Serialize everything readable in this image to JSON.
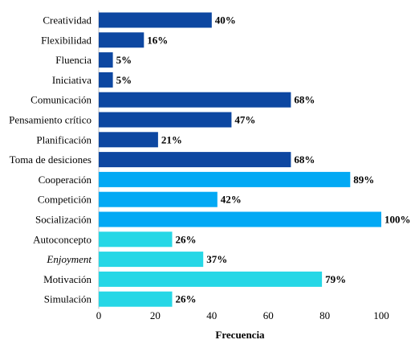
{
  "chart_data": {
    "type": "bar",
    "orientation": "horizontal",
    "categories": [
      "Creatividad",
      "Flexibilidad",
      "Fluencia",
      "Iniciativa",
      "Comunicación",
      "Pensamiento crítico",
      "Planificación",
      "Toma de desiciones",
      "Cooperación",
      "Competición",
      "Socialización",
      "Autoconcepto",
      "Enjoyment",
      "Motivación",
      "Simulación"
    ],
    "italic_categories": [
      "Enjoyment"
    ],
    "values": [
      40,
      16,
      5,
      5,
      68,
      47,
      21,
      68,
      89,
      42,
      100,
      26,
      37,
      79,
      26
    ],
    "data_labels": [
      "40%",
      "16%",
      "5%",
      "5%",
      "68%",
      "47%",
      "21%",
      "68%",
      "89%",
      "42%",
      "100%",
      "26%",
      "37%",
      "79%",
      "26%"
    ],
    "bar_colors": [
      "#0d47a1",
      "#0d47a1",
      "#0d47a1",
      "#0d47a1",
      "#0d47a1",
      "#0d47a1",
      "#0d47a1",
      "#0d47a1",
      "#03a9f4",
      "#03a9f4",
      "#03a9f4",
      "#26d7e6",
      "#26d7e6",
      "#26d7e6",
      "#26d7e6"
    ],
    "xlabel": "Frecuencia",
    "ylabel": "",
    "title": "",
    "xlim": [
      0,
      100
    ],
    "xticks": [
      0,
      20,
      40,
      60,
      80,
      100
    ],
    "xtick_labels": [
      "0",
      "20",
      "40",
      "60",
      "80",
      "100"
    ],
    "grid": false,
    "legend": "none"
  }
}
